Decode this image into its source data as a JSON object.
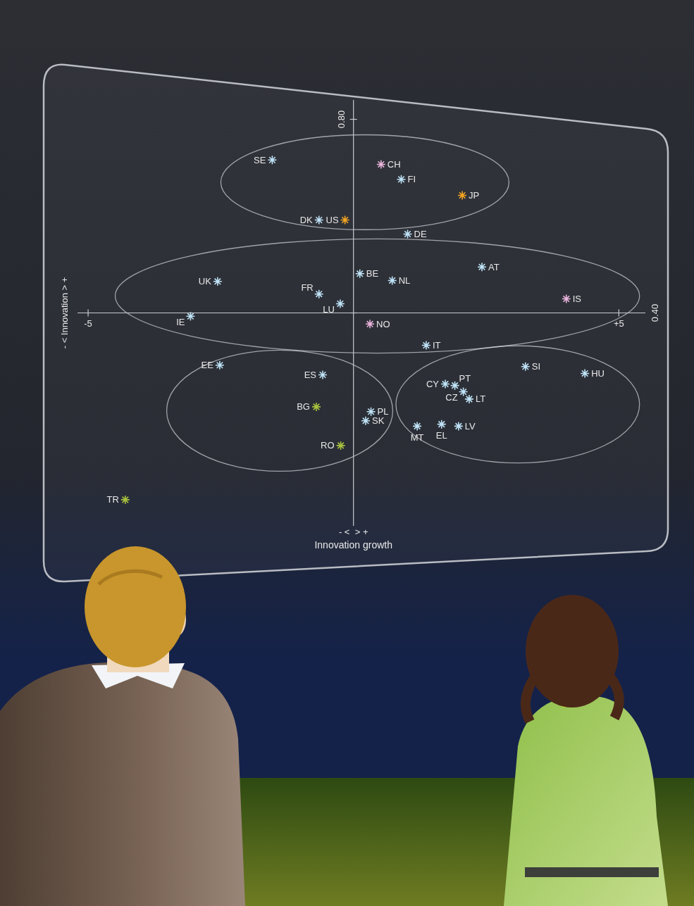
{
  "chart_data": {
    "type": "scatter",
    "marker": "star",
    "labels": [
      "SE",
      "CH",
      "FI",
      "JP",
      "DK",
      "US",
      "DE",
      "BE",
      "AT",
      "UK",
      "NL",
      "FR",
      "LU",
      "IS",
      "IE",
      "NO",
      "IT",
      "EE",
      "ES",
      "SI",
      "HU",
      "CY",
      "PT",
      "CZ",
      "LT",
      "BG",
      "PL",
      "SK",
      "MT",
      "EL",
      "LV",
      "RO",
      "TR"
    ],
    "x": [
      -1.53,
      0.52,
      0.9,
      2.05,
      -0.65,
      -0.16,
      1.02,
      0.12,
      2.42,
      -2.56,
      0.73,
      -0.65,
      -0.25,
      4.01,
      -3.07,
      0.31,
      1.37,
      -2.52,
      -0.58,
      3.24,
      4.36,
      1.73,
      1.91,
      2.07,
      2.18,
      -0.7,
      0.33,
      0.23,
      1.2,
      1.66,
      1.98,
      -0.24,
      -4.3
    ],
    "values": [
      0.716,
      0.707,
      0.676,
      0.643,
      0.592,
      0.592,
      0.563,
      0.481,
      0.495,
      0.465,
      0.467,
      0.439,
      0.419,
      0.429,
      0.393,
      0.377,
      0.333,
      0.292,
      0.272,
      0.289,
      0.275,
      0.253,
      0.25,
      0.237,
      0.222,
      0.206,
      0.196,
      0.177,
      0.166,
      0.17,
      0.166,
      0.126,
      0.014
    ],
    "colors": [
      "#bfe3f7",
      "#e9b4dc",
      "#bfe3f7",
      "#f5a623",
      "#bfe3f7",
      "#f5a623",
      "#bfe3f7",
      "#bfe3f7",
      "#bfe3f7",
      "#bfe3f7",
      "#bfe3f7",
      "#bfe3f7",
      "#bfe3f7",
      "#e9b4dc",
      "#bfe3f7",
      "#e9b4dc",
      "#bfe3f7",
      "#bfe3f7",
      "#bfe3f7",
      "#bfe3f7",
      "#bfe3f7",
      "#bfe3f7",
      "#bfe3f7",
      "#bfe3f7",
      "#bfe3f7",
      "#a9c23f",
      "#bfe3f7",
      "#bfe3f7",
      "#bfe3f7",
      "#bfe3f7",
      "#bfe3f7",
      "#a9c23f",
      "#a9c23f"
    ],
    "xlim": [
      -5.2,
      5.5
    ],
    "ylim": [
      -0.04,
      0.84
    ],
    "xticks": [
      -5,
      {
        "value": 5,
        "label": "+5"
      }
    ],
    "yticks": [
      {
        "value": 0.4,
        "label": "0.40"
      },
      {
        "value": 0.8,
        "label": "0.80"
      }
    ],
    "x_label": "Innovation growth",
    "y_label": "- < Innovation > +",
    "annotations": [
      "- <  > +"
    ],
    "ellipses": [
      {
        "x": [
          -2.5,
          2.93
        ],
        "y": [
          0.572,
          0.768
        ]
      },
      {
        "x": [
          -4.49,
          5.39
        ],
        "y": [
          0.317,
          0.553
        ]
      },
      {
        "x": [
          -3.52,
          0.74
        ],
        "y": [
          0.073,
          0.323
        ]
      },
      {
        "x": [
          0.8,
          5.39
        ],
        "y": [
          0.09,
          0.332
        ]
      }
    ],
    "grid": false
  }
}
